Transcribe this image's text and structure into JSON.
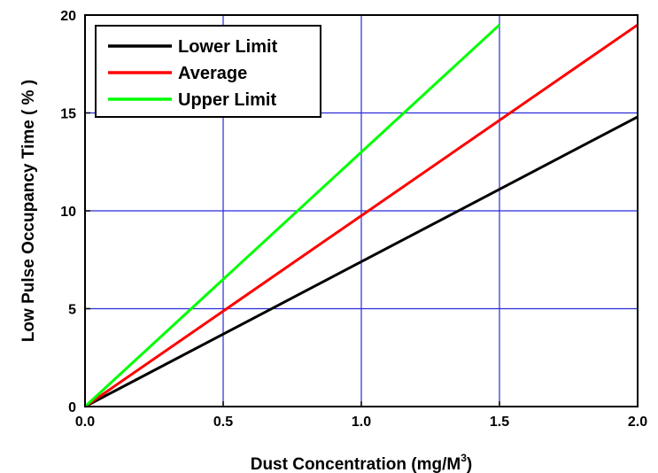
{
  "chart_data": {
    "type": "line",
    "title": "",
    "xlabel": "Dust Concentration (mg/M",
    "xlabel_sup": "3",
    "xlabel_suffix": ")",
    "ylabel": "Low Pulse Occupancy Time ( % )",
    "xlim": [
      0,
      2.0
    ],
    "ylim": [
      0,
      20
    ],
    "xticks": [
      "0.0",
      "0.5",
      "1.0",
      "1.5",
      "2.0"
    ],
    "xtick_values": [
      0,
      0.5,
      1.0,
      1.5,
      2.0
    ],
    "yticks": [
      "0",
      "5",
      "10",
      "15",
      "20"
    ],
    "ytick_values": [
      0,
      5,
      10,
      15,
      20
    ],
    "grid": true,
    "grid_color": "#2b2bd9",
    "legend_position": "top-left",
    "series": [
      {
        "name": "Lower Limit",
        "color": "#000000",
        "x": [
          0,
          2.0
        ],
        "y": [
          0,
          14.8
        ]
      },
      {
        "name": "Average",
        "color": "#ff0000",
        "x": [
          0,
          2.0
        ],
        "y": [
          0,
          19.5
        ]
      },
      {
        "name": "Upper Limit",
        "color": "#00ff00",
        "x": [
          0,
          1.5
        ],
        "y": [
          0,
          19.5
        ]
      }
    ]
  }
}
